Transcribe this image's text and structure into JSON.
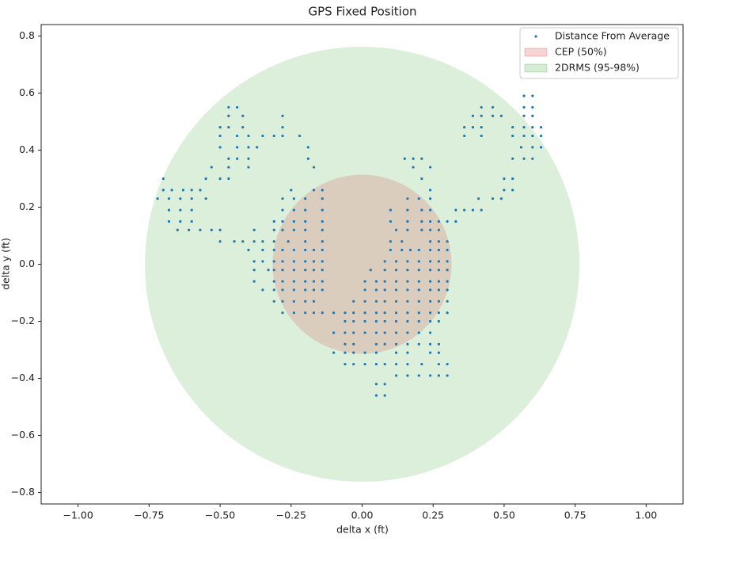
{
  "chart_data": {
    "type": "scatter",
    "title": "GPS Fixed Position",
    "x_label": "delta x (ft)",
    "y_label": "delta y (ft)",
    "xlim": [
      -1.13,
      1.13
    ],
    "ylim": [
      -0.84,
      0.84
    ],
    "xticks": [
      {
        "value": -1,
        "label": "−1.00"
      },
      {
        "value": -0.75,
        "label": "−0.75"
      },
      {
        "value": -0.5,
        "label": "−0.50"
      },
      {
        "value": -0.25,
        "label": "−0.25"
      },
      {
        "value": 0,
        "label": "0.00"
      },
      0.25,
      {
        "value": 0.5,
        "label": "0.50"
      },
      0.75,
      {
        "value": 1,
        "label": "1.00"
      }
    ],
    "yticks": [
      {
        "value": -0.8,
        "label": "−0.8"
      },
      {
        "value": -0.6,
        "label": "−0.6"
      },
      {
        "value": -0.4,
        "label": "−0.4"
      },
      {
        "value": -0.2,
        "label": "−0.2"
      },
      {
        "value": 0,
        "label": "0.0"
      },
      0.2,
      0.4,
      0.6,
      0.8
    ],
    "legend": "upper right",
    "circles": [
      {
        "name": "CEP (50%)",
        "color": "#d62728",
        "radius": 0.315
      },
      {
        "name": "2DRMS (95-98%)",
        "color": "#2ca02c",
        "radius": 0.765
      }
    ],
    "series": [
      {
        "name": "Distance From Average",
        "color": "#1f77b4",
        "x": [
          0.57,
          0.6,
          -0.47,
          -0.44,
          0.42,
          0.46,
          0.57,
          0.6,
          -0.47,
          -0.42,
          -0.28,
          0.39,
          0.42,
          0.46,
          0.49,
          0.57,
          0.6,
          -0.5,
          -0.47,
          -0.42,
          -0.28,
          0.36,
          0.39,
          0.42,
          0.53,
          0.57,
          0.6,
          0.63,
          -0.5,
          -0.44,
          -0.4,
          -0.35,
          -0.31,
          -0.28,
          -0.22,
          0.36,
          0.42,
          0.53,
          0.57,
          0.6,
          0.63,
          -0.5,
          -0.44,
          -0.4,
          -0.37,
          -0.19,
          0.56,
          0.6,
          0.63,
          -0.47,
          -0.44,
          -0.4,
          -0.19,
          0.15,
          0.18,
          0.21,
          0.53,
          0.57,
          0.6,
          -0.53,
          -0.47,
          -0.4,
          -0.17,
          0.18,
          0.24,
          -0.7,
          -0.55,
          -0.5,
          -0.47,
          0.21,
          0.5,
          0.53,
          -0.7,
          -0.67,
          -0.63,
          -0.6,
          -0.57,
          -0.25,
          -0.17,
          -0.14,
          0.24,
          0.5,
          0.53,
          -0.72,
          -0.68,
          -0.64,
          -0.6,
          -0.55,
          -0.28,
          -0.24,
          -0.2,
          -0.14,
          0.16,
          0.2,
          0.24,
          0.41,
          0.46,
          0.49,
          -0.68,
          -0.64,
          -0.6,
          -0.28,
          -0.24,
          -0.2,
          -0.14,
          0.1,
          0.16,
          0.21,
          0.24,
          0.33,
          0.36,
          0.39,
          0.42,
          -0.68,
          -0.64,
          -0.6,
          -0.31,
          -0.28,
          -0.24,
          -0.2,
          -0.14,
          0.1,
          0.16,
          0.21,
          0.24,
          0.27,
          0.3,
          0.33,
          -0.65,
          -0.61,
          -0.57,
          -0.53,
          -0.5,
          -0.38,
          -0.31,
          -0.28,
          -0.24,
          -0.2,
          -0.14,
          0.12,
          0.16,
          0.21,
          0.24,
          0.27,
          -0.5,
          -0.45,
          -0.42,
          -0.38,
          -0.35,
          -0.31,
          -0.26,
          -0.2,
          -0.14,
          0.1,
          0.14,
          0.24,
          0.27,
          0.3,
          -0.4,
          -0.35,
          -0.31,
          -0.28,
          -0.24,
          -0.2,
          -0.17,
          -0.14,
          0.1,
          0.14,
          0.17,
          0.2,
          0.24,
          0.27,
          0.3,
          -0.38,
          -0.35,
          -0.31,
          -0.28,
          -0.24,
          -0.2,
          -0.17,
          -0.14,
          0.08,
          0.12,
          0.16,
          0.2,
          0.24,
          0.27,
          0.3,
          -0.38,
          -0.33,
          -0.31,
          -0.28,
          -0.24,
          -0.2,
          -0.17,
          -0.14,
          0.03,
          0.08,
          0.12,
          0.16,
          0.2,
          0.24,
          0.27,
          0.3,
          -0.38,
          -0.31,
          -0.28,
          -0.24,
          -0.2,
          -0.17,
          -0.14,
          0.01,
          0.05,
          0.08,
          0.12,
          0.16,
          0.2,
          0.24,
          0.27,
          0.3,
          -0.35,
          -0.31,
          -0.28,
          -0.24,
          -0.2,
          -0.17,
          -0.14,
          0.01,
          0.05,
          0.08,
          0.12,
          0.16,
          0.2,
          0.24,
          0.27,
          0.3,
          -0.31,
          -0.28,
          -0.24,
          -0.2,
          -0.17,
          -0.03,
          0.01,
          0.05,
          0.08,
          0.12,
          0.16,
          0.2,
          0.24,
          0.27,
          0.3,
          -0.28,
          -0.24,
          -0.2,
          -0.17,
          -0.14,
          -0.1,
          -0.06,
          -0.03,
          0.01,
          0.05,
          0.08,
          0.12,
          0.16,
          0.2,
          0.24,
          0.27,
          0.3,
          -0.06,
          -0.03,
          0.01,
          0.05,
          0.08,
          0.12,
          0.16,
          0.2,
          0.24,
          0.27,
          -0.1,
          -0.06,
          -0.03,
          0.01,
          0.05,
          0.08,
          0.12,
          0.16,
          0.2,
          0.24,
          -0.06,
          -0.03,
          0.05,
          0.08,
          0.12,
          0.16,
          0.2,
          0.24,
          0.27,
          -0.1,
          -0.06,
          -0.03,
          0.01,
          0.05,
          0.12,
          0.16,
          0.24,
          0.27,
          -0.06,
          -0.03,
          0.01,
          0.05,
          0.08,
          0.12,
          0.16,
          0.21,
          0.27,
          0.3,
          0.12,
          0.16,
          0.2,
          0.24,
          0.27,
          0.3,
          0.05,
          0.08,
          0.05,
          0.08
        ],
        "values": [
          0.59,
          0.59,
          0.55,
          0.55,
          0.55,
          0.55,
          0.55,
          0.55,
          0.52,
          0.52,
          0.52,
          0.52,
          0.52,
          0.52,
          0.52,
          0.52,
          0.52,
          0.48,
          0.48,
          0.48,
          0.48,
          0.48,
          0.48,
          0.48,
          0.48,
          0.48,
          0.48,
          0.48,
          0.45,
          0.45,
          0.45,
          0.45,
          0.45,
          0.45,
          0.45,
          0.45,
          0.45,
          0.45,
          0.45,
          0.45,
          0.45,
          0.41,
          0.41,
          0.41,
          0.41,
          0.41,
          0.41,
          0.41,
          0.41,
          0.37,
          0.37,
          0.37,
          0.37,
          0.37,
          0.37,
          0.37,
          0.37,
          0.37,
          0.37,
          0.34,
          0.34,
          0.34,
          0.34,
          0.34,
          0.34,
          0.3,
          0.3,
          0.3,
          0.3,
          0.3,
          0.3,
          0.3,
          0.26,
          0.26,
          0.26,
          0.26,
          0.26,
          0.26,
          0.26,
          0.26,
          0.26,
          0.26,
          0.26,
          0.23,
          0.23,
          0.23,
          0.23,
          0.23,
          0.23,
          0.23,
          0.23,
          0.23,
          0.23,
          0.23,
          0.23,
          0.23,
          0.23,
          0.23,
          0.19,
          0.19,
          0.19,
          0.19,
          0.19,
          0.19,
          0.19,
          0.19,
          0.19,
          0.19,
          0.19,
          0.19,
          0.19,
          0.19,
          0.19,
          0.15,
          0.15,
          0.15,
          0.15,
          0.15,
          0.15,
          0.15,
          0.15,
          0.15,
          0.15,
          0.15,
          0.15,
          0.15,
          0.15,
          0.15,
          0.12,
          0.12,
          0.12,
          0.12,
          0.12,
          0.12,
          0.12,
          0.12,
          0.12,
          0.12,
          0.12,
          0.12,
          0.12,
          0.12,
          0.12,
          0.12,
          0.08,
          0.08,
          0.08,
          0.08,
          0.08,
          0.08,
          0.08,
          0.08,
          0.08,
          0.08,
          0.08,
          0.08,
          0.08,
          0.08,
          0.05,
          0.05,
          0.05,
          0.05,
          0.05,
          0.05,
          0.05,
          0.05,
          0.05,
          0.05,
          0.05,
          0.05,
          0.05,
          0.05,
          0.05,
          0.01,
          0.01,
          0.01,
          0.01,
          0.01,
          0.01,
          0.01,
          0.01,
          0.01,
          0.01,
          0.01,
          0.01,
          0.01,
          0.01,
          0.01,
          -0.02,
          -0.02,
          -0.02,
          -0.02,
          -0.02,
          -0.02,
          -0.02,
          -0.02,
          -0.02,
          -0.02,
          -0.02,
          -0.02,
          -0.02,
          -0.02,
          -0.02,
          -0.02,
          -0.06,
          -0.06,
          -0.06,
          -0.06,
          -0.06,
          -0.06,
          -0.06,
          -0.06,
          -0.06,
          -0.06,
          -0.06,
          -0.06,
          -0.06,
          -0.06,
          -0.06,
          -0.06,
          -0.09,
          -0.09,
          -0.09,
          -0.09,
          -0.09,
          -0.09,
          -0.09,
          -0.09,
          -0.09,
          -0.09,
          -0.09,
          -0.09,
          -0.09,
          -0.09,
          -0.09,
          -0.09,
          -0.13,
          -0.13,
          -0.13,
          -0.13,
          -0.13,
          -0.13,
          -0.13,
          -0.13,
          -0.13,
          -0.13,
          -0.13,
          -0.13,
          -0.13,
          -0.13,
          -0.13,
          -0.17,
          -0.17,
          -0.17,
          -0.17,
          -0.17,
          -0.17,
          -0.17,
          -0.17,
          -0.17,
          -0.17,
          -0.17,
          -0.17,
          -0.17,
          -0.17,
          -0.17,
          -0.17,
          -0.17,
          -0.2,
          -0.2,
          -0.2,
          -0.2,
          -0.2,
          -0.2,
          -0.2,
          -0.2,
          -0.2,
          -0.2,
          -0.24,
          -0.24,
          -0.24,
          -0.24,
          -0.24,
          -0.24,
          -0.24,
          -0.24,
          -0.24,
          -0.24,
          -0.28,
          -0.28,
          -0.28,
          -0.28,
          -0.28,
          -0.28,
          -0.28,
          -0.28,
          -0.28,
          -0.31,
          -0.31,
          -0.31,
          -0.31,
          -0.31,
          -0.31,
          -0.31,
          -0.31,
          -0.31,
          -0.35,
          -0.35,
          -0.35,
          -0.35,
          -0.35,
          -0.35,
          -0.35,
          -0.35,
          -0.35,
          -0.35,
          -0.39,
          -0.39,
          -0.39,
          -0.39,
          -0.39,
          -0.39,
          -0.42,
          -0.42,
          -0.46,
          -0.46
        ]
      }
    ]
  }
}
